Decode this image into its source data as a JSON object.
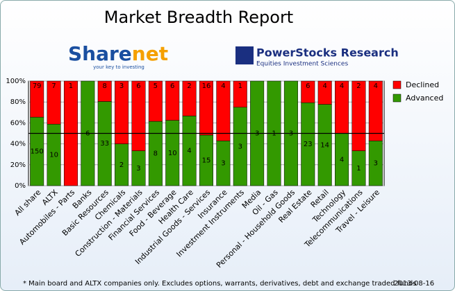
{
  "header": {
    "brand_a": "Share",
    "brand_b": "net",
    "brand_tagline": "your key to investing",
    "brand2": "PowerStocks  Research",
    "brand2_tagline": "Equities Investment Sciences"
  },
  "chart_data": {
    "type": "stacked_percent_bar",
    "title": "Market Breadth Report",
    "categories": [
      "All share",
      "ALTX",
      "Automobiles - Parts",
      "Banks",
      "Basic Resources",
      "Chemicals",
      "Construction - Materials",
      "Financial Services",
      "Food - Beverage",
      "Health Care",
      "Industrial Goods - Services",
      "Insurance",
      "Investment Instruments",
      "Media",
      "Oil - Gas",
      "Personal - Household Goods",
      "Real Estate",
      "Retail",
      "Technology",
      "Telecommunications",
      "Travel - Leisure"
    ],
    "series": [
      {
        "name": "Declined",
        "color": "#ff0000",
        "values": [
          79,
          7,
          1,
          0,
          8,
          3,
          6,
          5,
          6,
          2,
          16,
          4,
          1,
          0,
          0,
          0,
          6,
          4,
          4,
          2,
          4
        ]
      },
      {
        "name": "Advanced",
        "color": "#339900",
        "values": [
          150,
          10,
          0,
          6,
          33,
          2,
          3,
          8,
          10,
          4,
          15,
          3,
          3,
          3,
          1,
          3,
          23,
          14,
          4,
          1,
          3
        ]
      }
    ],
    "ylim": [
      0,
      100
    ],
    "yticks": [
      {
        "value": 0,
        "label": "0%"
      },
      {
        "value": 20,
        "label": "20%"
      },
      {
        "value": 40,
        "label": "40%"
      },
      {
        "value": 60,
        "label": "60%"
      },
      {
        "value": 80,
        "label": "80%"
      },
      {
        "value": 100,
        "label": "100%"
      }
    ],
    "reference_line": 50,
    "grid": true,
    "legend": "right",
    "footnote": "* Main board and ALTX companies only. Excludes options, warrants, derivatives, debt and exchange traded funds",
    "date": "2013-08-16"
  }
}
